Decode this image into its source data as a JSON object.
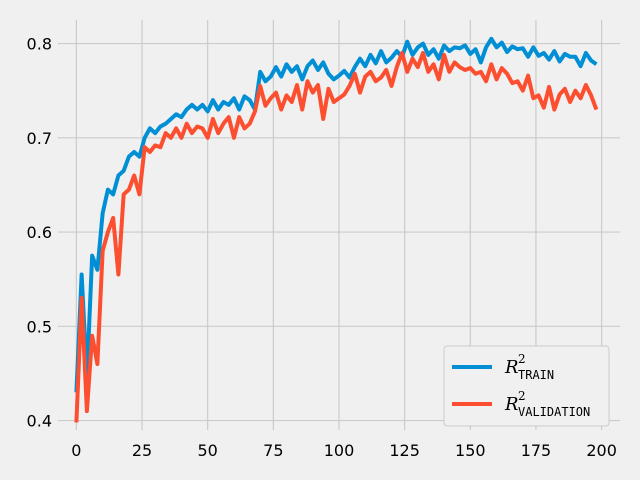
{
  "chart_data": {
    "type": "line",
    "title": "",
    "xlabel": "",
    "ylabel": "",
    "xlim": [
      -7,
      207
    ],
    "ylim": [
      0.39,
      0.825
    ],
    "xticks": [
      0,
      25,
      50,
      75,
      100,
      125,
      150,
      175,
      200
    ],
    "yticks": [
      0.4,
      0.5,
      0.6,
      0.7,
      0.8
    ],
    "xtick_labels": [
      "0",
      "25",
      "50",
      "75",
      "100",
      "125",
      "150",
      "175",
      "200"
    ],
    "ytick_labels": [
      "0.4",
      "0.5",
      "0.6",
      "0.7",
      "0.8"
    ],
    "grid": true,
    "legend_position": "lower-right",
    "x": [
      0,
      2,
      4,
      6,
      8,
      10,
      12,
      14,
      16,
      18,
      20,
      22,
      24,
      26,
      28,
      30,
      32,
      34,
      36,
      38,
      40,
      42,
      44,
      46,
      48,
      50,
      52,
      54,
      56,
      58,
      60,
      62,
      64,
      66,
      68,
      70,
      72,
      74,
      76,
      78,
      80,
      82,
      84,
      86,
      88,
      90,
      92,
      94,
      96,
      98,
      100,
      102,
      104,
      106,
      108,
      110,
      112,
      114,
      116,
      118,
      120,
      122,
      124,
      126,
      128,
      130,
      132,
      134,
      136,
      138,
      140,
      142,
      144,
      146,
      148,
      150,
      152,
      154,
      156,
      158,
      160,
      162,
      164,
      166,
      168,
      170,
      172,
      174,
      176,
      178,
      180,
      182,
      184,
      186,
      188,
      190,
      192,
      194,
      196,
      198
    ],
    "series": [
      {
        "name": "R²TRAIN",
        "color": "#008fd5",
        "values": [
          0.43,
          0.555,
          0.445,
          0.575,
          0.56,
          0.62,
          0.645,
          0.64,
          0.66,
          0.665,
          0.68,
          0.685,
          0.68,
          0.7,
          0.71,
          0.705,
          0.712,
          0.715,
          0.72,
          0.725,
          0.722,
          0.73,
          0.735,
          0.73,
          0.735,
          0.728,
          0.74,
          0.73,
          0.738,
          0.735,
          0.742,
          0.73,
          0.744,
          0.74,
          0.73,
          0.77,
          0.76,
          0.765,
          0.775,
          0.765,
          0.778,
          0.77,
          0.776,
          0.762,
          0.776,
          0.782,
          0.772,
          0.78,
          0.768,
          0.762,
          0.766,
          0.771,
          0.764,
          0.775,
          0.784,
          0.776,
          0.788,
          0.779,
          0.792,
          0.78,
          0.785,
          0.792,
          0.786,
          0.802,
          0.788,
          0.796,
          0.8,
          0.788,
          0.794,
          0.784,
          0.798,
          0.792,
          0.796,
          0.795,
          0.798,
          0.789,
          0.794,
          0.78,
          0.796,
          0.805,
          0.796,
          0.801,
          0.791,
          0.797,
          0.794,
          0.795,
          0.786,
          0.796,
          0.787,
          0.79,
          0.783,
          0.792,
          0.781,
          0.789,
          0.786,
          0.786,
          0.776,
          0.79,
          0.782,
          0.778
        ]
      },
      {
        "name": "R²VALIDATION",
        "color": "#fc4f30",
        "values": [
          0.398,
          0.53,
          0.41,
          0.49,
          0.46,
          0.58,
          0.6,
          0.615,
          0.555,
          0.64,
          0.645,
          0.66,
          0.64,
          0.69,
          0.685,
          0.692,
          0.69,
          0.705,
          0.7,
          0.71,
          0.7,
          0.715,
          0.705,
          0.712,
          0.71,
          0.7,
          0.72,
          0.705,
          0.715,
          0.722,
          0.7,
          0.722,
          0.71,
          0.715,
          0.728,
          0.755,
          0.734,
          0.742,
          0.748,
          0.73,
          0.745,
          0.738,
          0.756,
          0.73,
          0.76,
          0.748,
          0.756,
          0.72,
          0.752,
          0.738,
          0.742,
          0.746,
          0.755,
          0.768,
          0.748,
          0.765,
          0.77,
          0.76,
          0.764,
          0.772,
          0.755,
          0.775,
          0.79,
          0.77,
          0.784,
          0.775,
          0.79,
          0.77,
          0.778,
          0.762,
          0.788,
          0.77,
          0.78,
          0.775,
          0.772,
          0.774,
          0.768,
          0.77,
          0.76,
          0.778,
          0.762,
          0.774,
          0.768,
          0.758,
          0.76,
          0.75,
          0.766,
          0.742,
          0.745,
          0.732,
          0.754,
          0.73,
          0.746,
          0.752,
          0.738,
          0.75,
          0.742,
          0.756,
          0.745,
          0.73
        ]
      }
    ],
    "legend": [
      {
        "main": "R",
        "sup": "2",
        "sub": "TRAIN",
        "color": "#008fd5"
      },
      {
        "main": "R",
        "sup": "2",
        "sub": "VALIDATION",
        "color": "#fc4f30"
      }
    ]
  }
}
